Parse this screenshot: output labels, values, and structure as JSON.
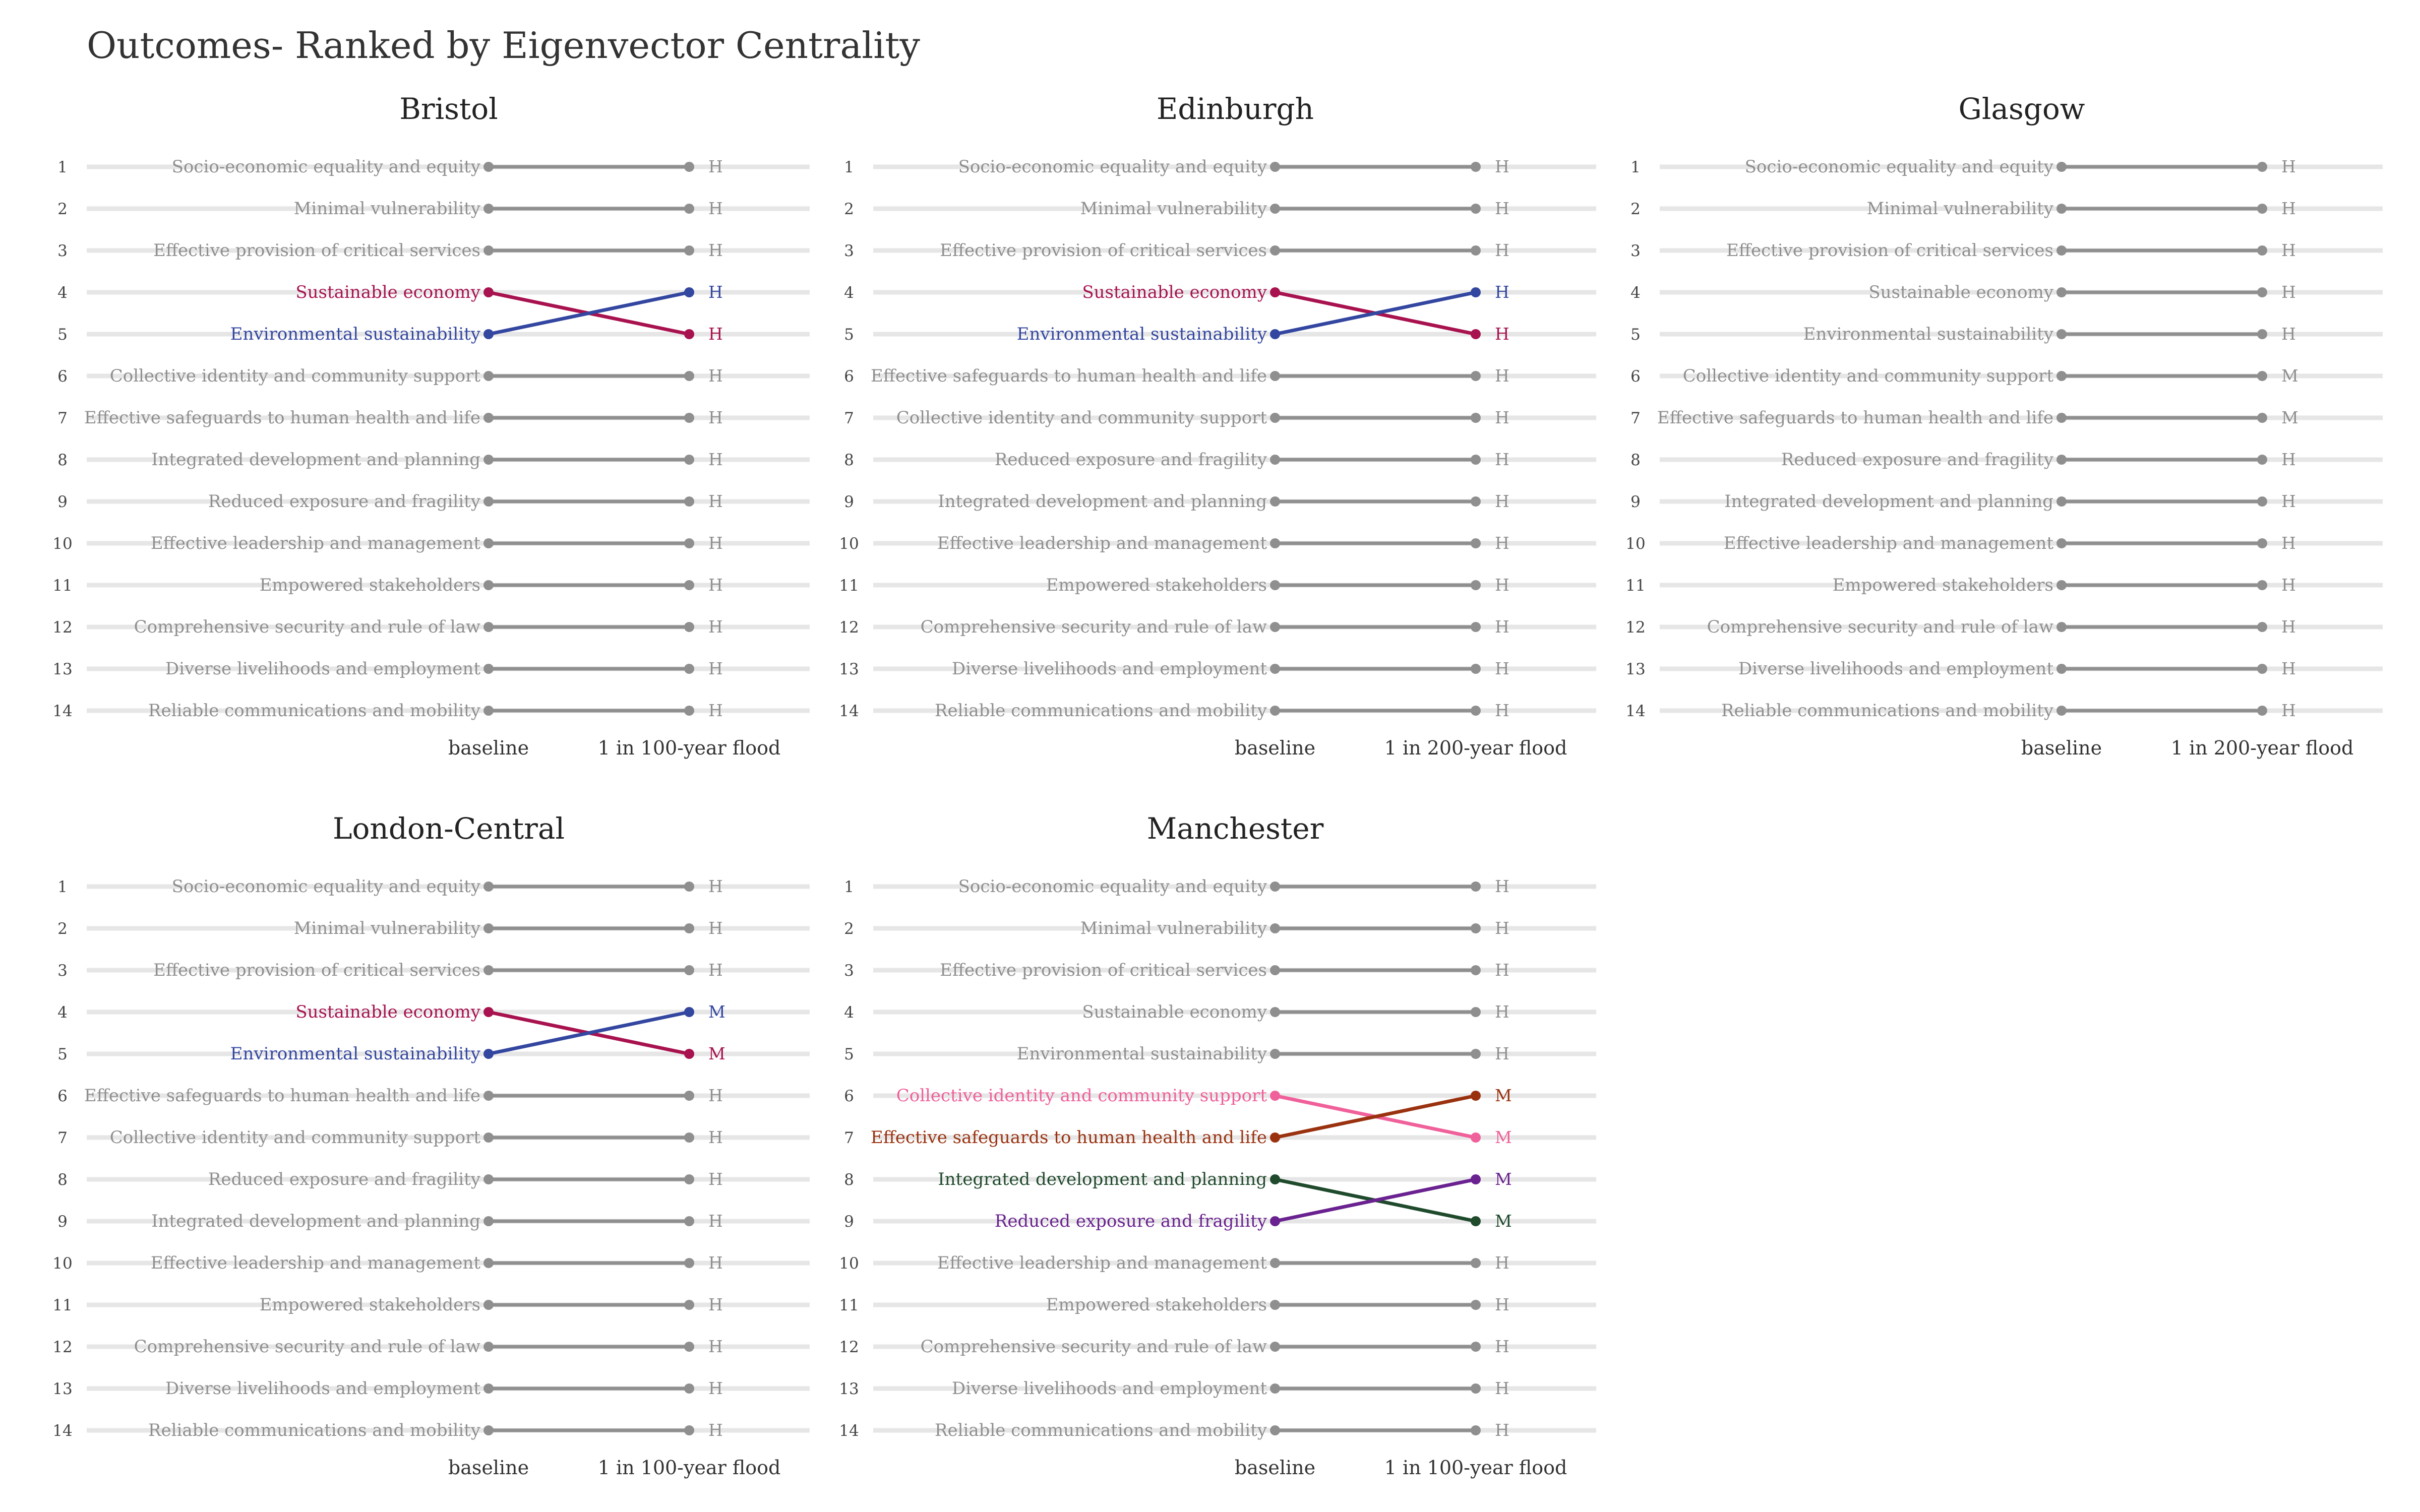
{
  "title": "Outcomes- Ranked by Eigenvector Centrality",
  "colors": {
    "gray": "#8f8f8f",
    "track": "#e6e6e6",
    "sust_econ": "#a8124f",
    "env_sust": "#3346a0",
    "collective_identity": "#f0609a",
    "safeguards": "#9a3210",
    "integrated_dev": "#1f4a2c",
    "reduced_exposure": "#6a2290"
  },
  "chart_data": [
    {
      "type": "slope",
      "panel": "Bristol",
      "xlabels": [
        "baseline",
        "1 in 100-year flood"
      ],
      "ranks": [
        1,
        2,
        3,
        4,
        5,
        6,
        7,
        8,
        9,
        10,
        11,
        12,
        13,
        14
      ],
      "outcomes": [
        {
          "name": "Socio-economic equality and equity",
          "baseline": 1,
          "scenario": 1,
          "level": "H",
          "color": "gray"
        },
        {
          "name": "Minimal vulnerability",
          "baseline": 2,
          "scenario": 2,
          "level": "H",
          "color": "gray"
        },
        {
          "name": "Effective provision of critical services",
          "baseline": 3,
          "scenario": 3,
          "level": "H",
          "color": "gray"
        },
        {
          "name": "Sustainable economy",
          "baseline": 4,
          "scenario": 5,
          "level": "H",
          "color": "sust_econ"
        },
        {
          "name": "Environmental sustainability",
          "baseline": 5,
          "scenario": 4,
          "level": "H",
          "color": "env_sust"
        },
        {
          "name": "Collective identity and community support",
          "baseline": 6,
          "scenario": 6,
          "level": "H",
          "color": "gray"
        },
        {
          "name": "Effective safeguards to human health and life",
          "baseline": 7,
          "scenario": 7,
          "level": "H",
          "color": "gray"
        },
        {
          "name": "Integrated development and planning",
          "baseline": 8,
          "scenario": 8,
          "level": "H",
          "color": "gray"
        },
        {
          "name": "Reduced exposure and fragility",
          "baseline": 9,
          "scenario": 9,
          "level": "H",
          "color": "gray"
        },
        {
          "name": "Effective leadership and management",
          "baseline": 10,
          "scenario": 10,
          "level": "H",
          "color": "gray"
        },
        {
          "name": "Empowered stakeholders",
          "baseline": 11,
          "scenario": 11,
          "level": "H",
          "color": "gray"
        },
        {
          "name": "Comprehensive security and rule of law",
          "baseline": 12,
          "scenario": 12,
          "level": "H",
          "color": "gray"
        },
        {
          "name": "Diverse livelihoods and employment",
          "baseline": 13,
          "scenario": 13,
          "level": "H",
          "color": "gray"
        },
        {
          "name": "Reliable communications and mobility",
          "baseline": 14,
          "scenario": 14,
          "level": "H",
          "color": "gray"
        }
      ]
    },
    {
      "type": "slope",
      "panel": "Edinburgh",
      "xlabels": [
        "baseline",
        "1 in 200-year flood"
      ],
      "ranks": [
        1,
        2,
        3,
        4,
        5,
        6,
        7,
        8,
        9,
        10,
        11,
        12,
        13,
        14
      ],
      "outcomes": [
        {
          "name": "Socio-economic equality and equity",
          "baseline": 1,
          "scenario": 1,
          "level": "H",
          "color": "gray"
        },
        {
          "name": "Minimal vulnerability",
          "baseline": 2,
          "scenario": 2,
          "level": "H",
          "color": "gray"
        },
        {
          "name": "Effective provision of critical services",
          "baseline": 3,
          "scenario": 3,
          "level": "H",
          "color": "gray"
        },
        {
          "name": "Sustainable economy",
          "baseline": 4,
          "scenario": 5,
          "level": "H",
          "color": "sust_econ"
        },
        {
          "name": "Environmental sustainability",
          "baseline": 5,
          "scenario": 4,
          "level": "H",
          "color": "env_sust"
        },
        {
          "name": "Effective safeguards to human health and life",
          "baseline": 6,
          "scenario": 6,
          "level": "H",
          "color": "gray"
        },
        {
          "name": "Collective identity and community support",
          "baseline": 7,
          "scenario": 7,
          "level": "H",
          "color": "gray"
        },
        {
          "name": "Reduced exposure and fragility",
          "baseline": 8,
          "scenario": 8,
          "level": "H",
          "color": "gray"
        },
        {
          "name": "Integrated development and planning",
          "baseline": 9,
          "scenario": 9,
          "level": "H",
          "color": "gray"
        },
        {
          "name": "Effective leadership and management",
          "baseline": 10,
          "scenario": 10,
          "level": "H",
          "color": "gray"
        },
        {
          "name": "Empowered stakeholders",
          "baseline": 11,
          "scenario": 11,
          "level": "H",
          "color": "gray"
        },
        {
          "name": "Comprehensive security and rule of law",
          "baseline": 12,
          "scenario": 12,
          "level": "H",
          "color": "gray"
        },
        {
          "name": "Diverse livelihoods and employment",
          "baseline": 13,
          "scenario": 13,
          "level": "H",
          "color": "gray"
        },
        {
          "name": "Reliable communications and mobility",
          "baseline": 14,
          "scenario": 14,
          "level": "H",
          "color": "gray"
        }
      ]
    },
    {
      "type": "slope",
      "panel": "Glasgow",
      "xlabels": [
        "baseline",
        "1 in 200-year flood"
      ],
      "ranks": [
        1,
        2,
        3,
        4,
        5,
        6,
        7,
        8,
        9,
        10,
        11,
        12,
        13,
        14
      ],
      "outcomes": [
        {
          "name": "Socio-economic equality and equity",
          "baseline": 1,
          "scenario": 1,
          "level": "H",
          "color": "gray"
        },
        {
          "name": "Minimal vulnerability",
          "baseline": 2,
          "scenario": 2,
          "level": "H",
          "color": "gray"
        },
        {
          "name": "Effective provision of critical services",
          "baseline": 3,
          "scenario": 3,
          "level": "H",
          "color": "gray"
        },
        {
          "name": "Sustainable economy",
          "baseline": 4,
          "scenario": 4,
          "level": "H",
          "color": "gray"
        },
        {
          "name": "Environmental sustainability",
          "baseline": 5,
          "scenario": 5,
          "level": "H",
          "color": "gray"
        },
        {
          "name": "Collective identity and community support",
          "baseline": 6,
          "scenario": 6,
          "level": "M",
          "color": "gray"
        },
        {
          "name": "Effective safeguards to human health and life",
          "baseline": 7,
          "scenario": 7,
          "level": "M",
          "color": "gray"
        },
        {
          "name": "Reduced exposure and fragility",
          "baseline": 8,
          "scenario": 8,
          "level": "H",
          "color": "gray"
        },
        {
          "name": "Integrated development and planning",
          "baseline": 9,
          "scenario": 9,
          "level": "H",
          "color": "gray"
        },
        {
          "name": "Effective leadership and management",
          "baseline": 10,
          "scenario": 10,
          "level": "H",
          "color": "gray"
        },
        {
          "name": "Empowered stakeholders",
          "baseline": 11,
          "scenario": 11,
          "level": "H",
          "color": "gray"
        },
        {
          "name": "Comprehensive security and rule of law",
          "baseline": 12,
          "scenario": 12,
          "level": "H",
          "color": "gray"
        },
        {
          "name": "Diverse livelihoods and employment",
          "baseline": 13,
          "scenario": 13,
          "level": "H",
          "color": "gray"
        },
        {
          "name": "Reliable communications and mobility",
          "baseline": 14,
          "scenario": 14,
          "level": "H",
          "color": "gray"
        }
      ]
    },
    {
      "type": "slope",
      "panel": "London-Central",
      "xlabels": [
        "baseline",
        "1 in 100-year flood"
      ],
      "ranks": [
        1,
        2,
        3,
        4,
        5,
        6,
        7,
        8,
        9,
        10,
        11,
        12,
        13,
        14
      ],
      "outcomes": [
        {
          "name": "Socio-economic equality and equity",
          "baseline": 1,
          "scenario": 1,
          "level": "H",
          "color": "gray"
        },
        {
          "name": "Minimal vulnerability",
          "baseline": 2,
          "scenario": 2,
          "level": "H",
          "color": "gray"
        },
        {
          "name": "Effective provision of critical services",
          "baseline": 3,
          "scenario": 3,
          "level": "H",
          "color": "gray"
        },
        {
          "name": "Sustainable economy",
          "baseline": 4,
          "scenario": 5,
          "level": "M",
          "color": "sust_econ"
        },
        {
          "name": "Environmental sustainability",
          "baseline": 5,
          "scenario": 4,
          "level": "M",
          "color": "env_sust"
        },
        {
          "name": "Effective safeguards to human health and life",
          "baseline": 6,
          "scenario": 6,
          "level": "H",
          "color": "gray"
        },
        {
          "name": "Collective identity and community support",
          "baseline": 7,
          "scenario": 7,
          "level": "H",
          "color": "gray"
        },
        {
          "name": "Reduced exposure and fragility",
          "baseline": 8,
          "scenario": 8,
          "level": "H",
          "color": "gray"
        },
        {
          "name": "Integrated development and planning",
          "baseline": 9,
          "scenario": 9,
          "level": "H",
          "color": "gray"
        },
        {
          "name": "Effective leadership and management",
          "baseline": 10,
          "scenario": 10,
          "level": "H",
          "color": "gray"
        },
        {
          "name": "Empowered stakeholders",
          "baseline": 11,
          "scenario": 11,
          "level": "H",
          "color": "gray"
        },
        {
          "name": "Comprehensive security and rule of law",
          "baseline": 12,
          "scenario": 12,
          "level": "H",
          "color": "gray"
        },
        {
          "name": "Diverse livelihoods and employment",
          "baseline": 13,
          "scenario": 13,
          "level": "H",
          "color": "gray"
        },
        {
          "name": "Reliable communications and mobility",
          "baseline": 14,
          "scenario": 14,
          "level": "H",
          "color": "gray"
        }
      ]
    },
    {
      "type": "slope",
      "panel": "Manchester",
      "xlabels": [
        "baseline",
        "1 in 100-year flood"
      ],
      "ranks": [
        1,
        2,
        3,
        4,
        5,
        6,
        7,
        8,
        9,
        10,
        11,
        12,
        13,
        14
      ],
      "outcomes": [
        {
          "name": "Socio-economic equality and equity",
          "baseline": 1,
          "scenario": 1,
          "level": "H",
          "color": "gray"
        },
        {
          "name": "Minimal vulnerability",
          "baseline": 2,
          "scenario": 2,
          "level": "H",
          "color": "gray"
        },
        {
          "name": "Effective provision of critical services",
          "baseline": 3,
          "scenario": 3,
          "level": "H",
          "color": "gray"
        },
        {
          "name": "Sustainable economy",
          "baseline": 4,
          "scenario": 4,
          "level": "H",
          "color": "gray"
        },
        {
          "name": "Environmental sustainability",
          "baseline": 5,
          "scenario": 5,
          "level": "H",
          "color": "gray"
        },
        {
          "name": "Collective identity and community support",
          "baseline": 6,
          "scenario": 7,
          "level": "M",
          "color": "collective_identity"
        },
        {
          "name": "Effective safeguards to human health and life",
          "baseline": 7,
          "scenario": 6,
          "level": "M",
          "color": "safeguards"
        },
        {
          "name": "Integrated development and planning",
          "baseline": 8,
          "scenario": 9,
          "level": "M",
          "color": "integrated_dev"
        },
        {
          "name": "Reduced exposure and fragility",
          "baseline": 9,
          "scenario": 8,
          "level": "M",
          "color": "reduced_exposure"
        },
        {
          "name": "Effective leadership and management",
          "baseline": 10,
          "scenario": 10,
          "level": "H",
          "color": "gray"
        },
        {
          "name": "Empowered stakeholders",
          "baseline": 11,
          "scenario": 11,
          "level": "H",
          "color": "gray"
        },
        {
          "name": "Comprehensive security and rule of law",
          "baseline": 12,
          "scenario": 12,
          "level": "H",
          "color": "gray"
        },
        {
          "name": "Diverse livelihoods and employment",
          "baseline": 13,
          "scenario": 13,
          "level": "H",
          "color": "gray"
        },
        {
          "name": "Reliable communications and mobility",
          "baseline": 14,
          "scenario": 14,
          "level": "H",
          "color": "gray"
        }
      ]
    }
  ]
}
